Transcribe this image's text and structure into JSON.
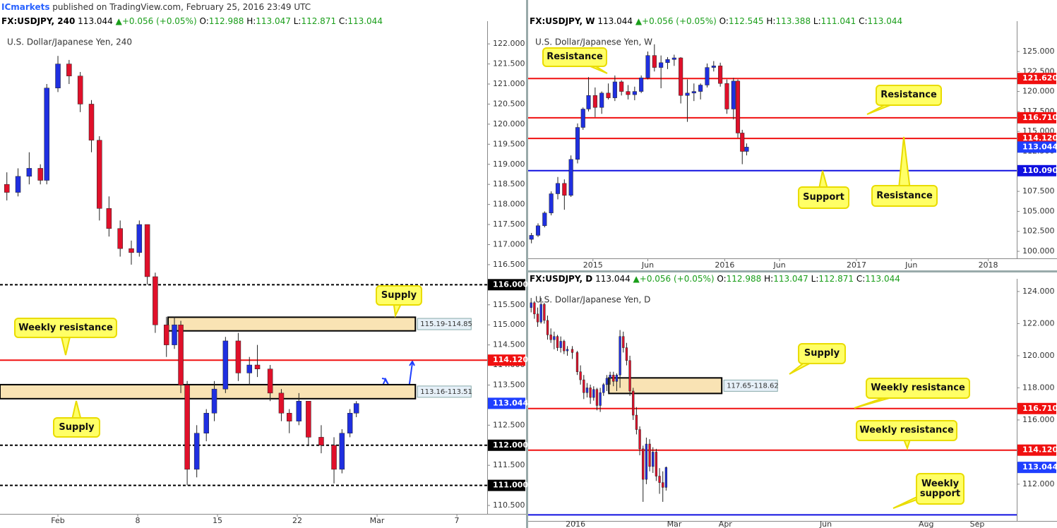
{
  "header": {
    "brand": "ICmarkets",
    "text": "published on TradingView.com, February 25, 2016 23:49 UTC"
  },
  "chart_data": [
    {
      "type": "candlestick",
      "symbol": "FX:USDJPY, 240",
      "last_text": "113.044",
      "arrow": "▲",
      "change": "+0.056 (+0.05%)",
      "quote": [
        {
          "label": "O:",
          "value": "112.988"
        },
        {
          "label": "H:",
          "value": "113.047"
        },
        {
          "label": "L:",
          "value": "112.871"
        },
        {
          "label": "C:",
          "value": "113.044"
        }
      ],
      "title": "U.S. Dollar/Japanese Yen, 240",
      "up_color": "#1f2fe0",
      "down_color": "#e0102a",
      "x": [
        -3.2,
        -2.5,
        -1.8,
        -1.1,
        -0.7,
        0,
        0.7,
        1.4,
        2.1,
        2.6,
        3.2,
        3.9,
        4.6,
        5.1,
        5.6,
        6.1,
        6.8,
        7.3,
        7.7,
        8.1,
        8.7,
        9.3,
        9.8,
        10.5,
        11.3,
        12.0,
        12.5,
        13.3,
        14.0,
        14.5,
        15.1,
        15.7,
        16.5,
        17.3,
        17.8,
        18.3,
        18.7
      ],
      "open": [
        118.5,
        118.3,
        118.7,
        118.9,
        118.6,
        120.9,
        121.5,
        121.2,
        120.5,
        119.6,
        117.9,
        117.4,
        116.9,
        116.8,
        117.5,
        116.2,
        115.0,
        114.5,
        115.0,
        113.5,
        111.4,
        112.3,
        112.8,
        113.4,
        114.6,
        113.8,
        114.0,
        113.9,
        113.3,
        112.8,
        112.6,
        113.1,
        112.2,
        112.0,
        111.4,
        112.3,
        112.8
      ],
      "high": [
        118.8,
        118.9,
        119.3,
        119.0,
        121.0,
        121.7,
        121.6,
        121.3,
        120.6,
        119.7,
        118.2,
        117.6,
        117.1,
        117.6,
        117.5,
        116.3,
        115.2,
        115.2,
        115.1,
        113.6,
        112.5,
        112.9,
        113.6,
        114.7,
        114.8,
        114.2,
        114.5,
        114.0,
        113.4,
        112.9,
        113.3,
        113.1,
        112.5,
        112.2,
        112.4,
        112.9,
        113.1
      ],
      "low": [
        118.1,
        118.2,
        118.5,
        118.5,
        118.5,
        120.8,
        121.0,
        120.3,
        119.3,
        117.6,
        117.2,
        116.7,
        116.5,
        116.7,
        116.0,
        114.8,
        114.2,
        114.4,
        113.3,
        111.0,
        111.2,
        112.1,
        112.6,
        113.3,
        113.6,
        113.5,
        113.7,
        113.1,
        112.6,
        112.3,
        112.5,
        112.0,
        111.8,
        111.05,
        111.3,
        112.2,
        112.7
      ],
      "close": [
        118.3,
        118.7,
        118.9,
        118.6,
        120.9,
        121.5,
        121.2,
        120.5,
        119.6,
        117.9,
        117.4,
        116.9,
        116.8,
        117.5,
        116.2,
        115.0,
        114.5,
        115.0,
        113.5,
        111.4,
        112.3,
        112.8,
        113.4,
        114.6,
        113.8,
        114.0,
        113.9,
        113.3,
        112.8,
        112.6,
        113.1,
        112.2,
        112.0,
        111.4,
        112.3,
        112.8,
        113.04
      ],
      "xlim": [
        -3.63,
        26.9
      ],
      "ylim": [
        110.29,
        122.39
      ],
      "xticks": [
        {
          "value": 0,
          "label": "Feb"
        },
        {
          "value": 5,
          "label": "8"
        },
        {
          "value": 10,
          "label": "15"
        },
        {
          "value": 15,
          "label": "22"
        },
        {
          "value": 20,
          "label": "Mar"
        },
        {
          "value": 25,
          "label": "7"
        }
      ],
      "yticks": [
        {
          "value": 110.5,
          "label": "110.500"
        },
        {
          "value": 111,
          "label": "111.000"
        },
        {
          "value": 111.5,
          "label": "111.500"
        },
        {
          "value": 112,
          "label": "112.000"
        },
        {
          "value": 112.5,
          "label": "112.500"
        },
        {
          "value": 113,
          "label": "113.000"
        },
        {
          "value": 113.5,
          "label": "113.500"
        },
        {
          "value": 114,
          "label": "114.000"
        },
        {
          "value": 114.5,
          "label": "114.500"
        },
        {
          "value": 115,
          "label": "115.000"
        },
        {
          "value": 115.5,
          "label": "115.500"
        },
        {
          "value": 116,
          "label": "116.000"
        },
        {
          "value": 116.5,
          "label": "116.500"
        },
        {
          "value": 117,
          "label": "117.000"
        },
        {
          "value": 117.5,
          "label": "117.500"
        },
        {
          "value": 118,
          "label": "118.000"
        },
        {
          "value": 118.5,
          "label": "118.500"
        },
        {
          "value": 119,
          "label": "119.000"
        },
        {
          "value": 119.5,
          "label": "119.500"
        },
        {
          "value": 120,
          "label": "120.000"
        },
        {
          "value": 120.5,
          "label": "120.500"
        },
        {
          "value": 121,
          "label": "121.000"
        },
        {
          "value": 121.5,
          "label": "121.500"
        },
        {
          "value": 122,
          "label": "122.000"
        }
      ],
      "zones": [
        {
          "low": 114.85,
          "high": 115.19,
          "x0": 6.9,
          "x1": 22.4,
          "label": "115.19-114.85"
        },
        {
          "low": 113.16,
          "high": 113.51,
          "x0": -3.63,
          "x1": 22.4,
          "label": "113.16-113.51"
        }
      ],
      "levels": [
        {
          "value": 116,
          "label": "116.000",
          "color": "#000000",
          "dashed": true
        },
        {
          "value": 112,
          "label": "112.000",
          "color": "#000000",
          "dashed": true
        },
        {
          "value": 111,
          "label": "111.000",
          "color": "#000000",
          "dashed": true
        },
        {
          "value": 114.12,
          "label": "114.120",
          "color": "#f01010",
          "dashed": false
        }
      ],
      "last": {
        "value": 113.044,
        "label": "113.044",
        "color": "#1f3fff"
      },
      "callouts": [
        "Supply",
        "Weekly resistance",
        "Supply"
      ]
    },
    {
      "type": "candlestick",
      "symbol": "FX:USDJPY, W",
      "last_text": "113.044",
      "arrow": "▲",
      "change": "+0.056 (+0.05%)",
      "quote": [
        {
          "label": "O:",
          "value": "112.545"
        },
        {
          "label": "H:",
          "value": "113.388"
        },
        {
          "label": "L:",
          "value": "111.041"
        },
        {
          "label": "C:",
          "value": "113.044"
        }
      ],
      "title": "U.S. Dollar/Japanese Yen, W",
      "up_color": "#1f2fe0",
      "down_color": "#e0102a",
      "x": [
        -5.6,
        -5.0,
        -4.4,
        -3.8,
        -3.2,
        -2.6,
        -2.0,
        -1.4,
        -0.9,
        -0.4,
        0.2,
        0.8,
        1.4,
        2.0,
        2.6,
        3.2,
        3.8,
        4.4,
        5.0,
        5.6,
        6.2,
        6.8,
        7.4,
        8.0,
        8.6,
        9.2,
        9.8,
        10.4,
        11.0,
        11.6,
        12.2,
        12.8,
        13.2,
        13.6,
        14.0
      ],
      "open": [
        101.5,
        102.0,
        103.2,
        104.8,
        107.2,
        108.5,
        107.0,
        111.5,
        115.5,
        117.8,
        119.5,
        118.0,
        119.8,
        119.2,
        121.2,
        120.0,
        119.6,
        120.0,
        121.7,
        124.5,
        123.0,
        123.6,
        124.0,
        124.2,
        119.5,
        119.8,
        120.0,
        120.8,
        123.0,
        123.2,
        121.0,
        117.8,
        121.3,
        114.8,
        112.5
      ],
      "high": [
        102.3,
        103.5,
        105.0,
        107.5,
        109.3,
        109.0,
        112.0,
        116.0,
        118.0,
        121.8,
        120.5,
        120.0,
        121.0,
        122.0,
        121.4,
        120.8,
        120.6,
        122.0,
        125.0,
        125.9,
        124.5,
        124.3,
        124.6,
        124.3,
        121.5,
        121.0,
        121.0,
        123.5,
        123.8,
        123.6,
        121.5,
        121.7,
        121.5,
        115.2,
        113.5
      ],
      "low": [
        101.0,
        101.8,
        103.0,
        104.5,
        106.5,
        105.2,
        106.8,
        111.0,
        115.2,
        117.5,
        116.8,
        117.2,
        119.0,
        118.8,
        119.5,
        119.0,
        118.9,
        119.8,
        121.5,
        122.5,
        120.4,
        122.8,
        123.2,
        118.5,
        116.2,
        118.8,
        119.0,
        120.5,
        122.5,
        120.6,
        117.2,
        116.5,
        114.2,
        110.9,
        112.0
      ],
      "close": [
        102.0,
        103.2,
        104.8,
        107.2,
        108.5,
        107.0,
        111.5,
        115.5,
        117.8,
        119.5,
        118.0,
        119.8,
        119.2,
        121.2,
        120.0,
        119.6,
        120.0,
        121.7,
        124.5,
        123.0,
        123.6,
        124.0,
        124.2,
        119.5,
        119.8,
        120.0,
        120.8,
        123.0,
        123.2,
        121.0,
        117.8,
        121.3,
        114.8,
        112.5,
        113.04
      ],
      "xlim": [
        -5.9,
        38.6
      ],
      "ylim": [
        99.12,
        127.91
      ],
      "xticks": [
        {
          "value": 0,
          "label": "2015"
        },
        {
          "value": 5,
          "label": "Jun"
        },
        {
          "value": 12,
          "label": "2016"
        },
        {
          "value": 17,
          "label": "Jun"
        },
        {
          "value": 24,
          "label": "2017"
        },
        {
          "value": 29,
          "label": "Jun"
        },
        {
          "value": 36,
          "label": "2018"
        }
      ],
      "yticks": [
        {
          "value": 100,
          "label": "100.000"
        },
        {
          "value": 102.5,
          "label": "102.500"
        },
        {
          "value": 105,
          "label": "105.000"
        },
        {
          "value": 107.5,
          "label": "107.500"
        },
        {
          "value": 110,
          "label": "110.000"
        },
        {
          "value": 112.5,
          "label": "112.500"
        },
        {
          "value": 115,
          "label": "115.000"
        },
        {
          "value": 117.5,
          "label": "117.500"
        },
        {
          "value": 120,
          "label": "120.000"
        },
        {
          "value": 122.5,
          "label": "122.500"
        },
        {
          "value": 125,
          "label": "125.000"
        }
      ],
      "zones": [],
      "levels": [
        {
          "value": 121.62,
          "label": "121.620",
          "color": "#f01010",
          "dashed": false
        },
        {
          "value": 116.71,
          "label": "116.710",
          "color": "#f01010",
          "dashed": false
        },
        {
          "value": 114.12,
          "label": "114.120",
          "color": "#f01010",
          "dashed": false
        },
        {
          "value": 110.09,
          "label": "110.090",
          "color": "#1010e0",
          "dashed": false
        }
      ],
      "last": {
        "value": 113.044,
        "label": "113.044",
        "color": "#1f3fff"
      },
      "callouts": [
        "Resistance",
        "Resistance",
        "Support",
        "Resistance"
      ]
    },
    {
      "type": "candlestick",
      "symbol": "FX:USDJPY, D",
      "last_text": "113.044",
      "arrow": "▲",
      "change": "+0.056 (+0.05%)",
      "quote": [
        {
          "label": "O:",
          "value": "112.988"
        },
        {
          "label": "H:",
          "value": "113.047"
        },
        {
          "label": "L:",
          "value": "112.871"
        },
        {
          "label": "C:",
          "value": "113.044"
        }
      ],
      "title": "U.S. Dollar/Japanese Yen, D",
      "up_color": "#1f2fe0",
      "down_color": "#e0102a",
      "x": [
        -27,
        -25,
        -23,
        -21,
        -19,
        -17,
        -15,
        -13,
        -11,
        -9,
        -7,
        -5,
        -2,
        1,
        3,
        5,
        7,
        9,
        11,
        13,
        15,
        17,
        19,
        21,
        23,
        25,
        27,
        29,
        31,
        33,
        35,
        37,
        39,
        41,
        43,
        45,
        47,
        49,
        51,
        53,
        55
      ],
      "open": [
        123.0,
        123.3,
        122.6,
        122.1,
        123.2,
        122.2,
        121.3,
        121.0,
        121.2,
        120.5,
        120.9,
        120.3,
        120.4,
        120.2,
        119.0,
        118.5,
        117.7,
        118.0,
        117.4,
        117.9,
        116.9,
        117.7,
        118.2,
        118.6,
        118.8,
        118.4,
        118.8,
        121.2,
        120.5,
        119.7,
        117.8,
        116.3,
        115.4,
        114.2,
        112.3,
        114.5,
        113.1,
        114.0,
        112.5,
        112.1,
        111.8
      ],
      "high": [
        123.6,
        123.4,
        123.0,
        123.6,
        123.3,
        122.5,
        121.7,
        121.5,
        121.3,
        121.2,
        121.0,
        120.6,
        120.6,
        120.3,
        119.4,
        118.8,
        118.3,
        118.2,
        118.1,
        118.0,
        118.0,
        118.3,
        118.8,
        119.0,
        119.0,
        118.9,
        121.6,
        121.5,
        120.8,
        120.0,
        118.0,
        116.8,
        115.6,
        114.4,
        114.9,
        114.8,
        114.3,
        114.2,
        113.0,
        112.8,
        113.1
      ],
      "low": [
        122.7,
        122.3,
        121.8,
        122.0,
        122.0,
        121.0,
        120.8,
        120.4,
        120.3,
        120.2,
        120.1,
        120.0,
        119.8,
        118.8,
        118.2,
        117.3,
        117.4,
        117.0,
        117.2,
        116.6,
        116.5,
        117.5,
        117.8,
        118.2,
        118.1,
        117.8,
        118.0,
        120.2,
        119.4,
        117.5,
        116.0,
        115.1,
        113.8,
        110.9,
        112.0,
        112.8,
        112.7,
        112.2,
        111.4,
        110.9,
        111.6
      ],
      "close": [
        123.3,
        122.6,
        122.1,
        123.2,
        122.2,
        121.3,
        121.0,
        121.2,
        120.5,
        120.9,
        120.3,
        120.4,
        120.2,
        119.0,
        118.5,
        117.7,
        118.0,
        117.4,
        117.9,
        116.9,
        117.7,
        118.2,
        118.6,
        118.8,
        118.4,
        118.8,
        121.2,
        120.5,
        119.7,
        117.8,
        116.3,
        115.4,
        114.2,
        112.3,
        114.5,
        113.1,
        114.0,
        112.5,
        112.1,
        111.8,
        113.04
      ],
      "xlim": [
        -28.8,
        268.0
      ],
      "ylim": [
        109.71,
        124.35
      ],
      "xticks": [
        {
          "value": 0,
          "label": "2016"
        },
        {
          "value": 60,
          "label": "Mar"
        },
        {
          "value": 91,
          "label": "Apr"
        },
        {
          "value": 152,
          "label": "Jun"
        },
        {
          "value": 213,
          "label": "Aug"
        },
        {
          "value": 244,
          "label": "Sep"
        }
      ],
      "yticks": [
        {
          "value": 112,
          "label": "112.000"
        },
        {
          "value": 114,
          "label": "114.000"
        },
        {
          "value": 116,
          "label": "116.000"
        },
        {
          "value": 118,
          "label": "118.000"
        },
        {
          "value": 120,
          "label": "120.000"
        },
        {
          "value": 122,
          "label": "122.000"
        },
        {
          "value": 124,
          "label": "124.000"
        }
      ],
      "zones": [
        {
          "low": 117.65,
          "high": 118.62,
          "x0": 20.2,
          "x1": 88.8,
          "label": "117.65-118.62"
        }
      ],
      "levels": [
        {
          "value": 116.71,
          "label": "116.710",
          "color": "#f01010",
          "dashed": false
        },
        {
          "value": 114.12,
          "label": "114.120",
          "color": "#f01010",
          "dashed": false
        },
        {
          "value": 110.09,
          "color": "#1010e0",
          "dashed": false
        }
      ],
      "last": {
        "value": 113.044,
        "label": "113.044",
        "color": "#1f3fff"
      },
      "callouts": [
        "Supply",
        "Weekly resistance",
        "Weekly resistance",
        "Weekly support"
      ]
    }
  ]
}
